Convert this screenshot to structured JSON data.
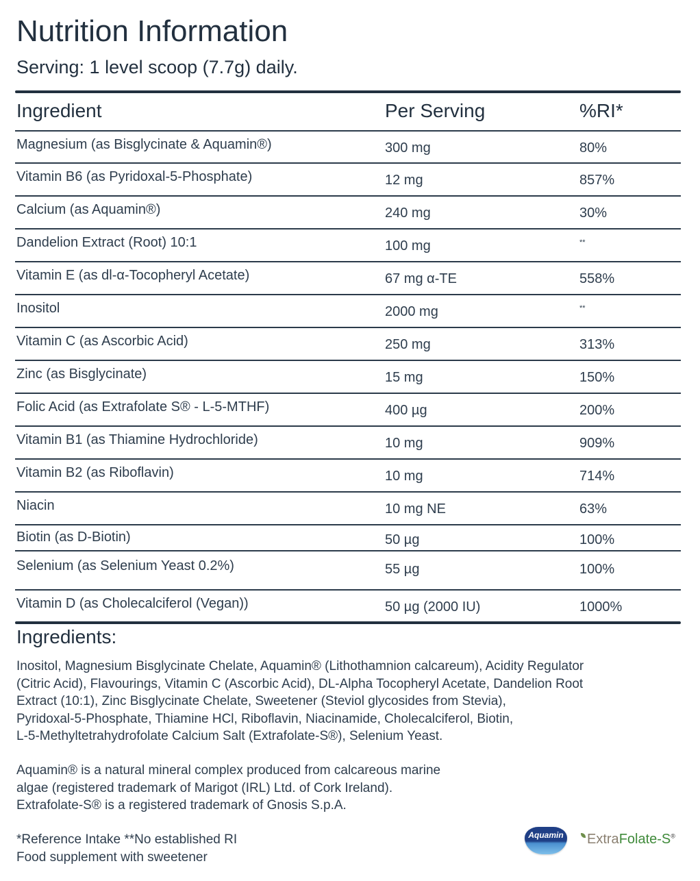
{
  "header": {
    "title": "Nutrition Information",
    "serving": "Serving: 1 level scoop (7.7g) daily."
  },
  "table": {
    "columns": [
      "Ingredient",
      "Per Serving",
      "%RI*"
    ],
    "rows": [
      {
        "ingredient": "Magnesium (as Bisglycinate & Aquamin®)",
        "per_serving": "300 mg",
        "ri": "80%"
      },
      {
        "ingredient": "Vitamin B6 (as Pyridoxal-5-Phosphate)",
        "per_serving": "12 mg",
        "ri": "857%"
      },
      {
        "ingredient": "Calcium (as Aquamin®)",
        "per_serving": "240 mg",
        "ri": "30%"
      },
      {
        "ingredient": "Dandelion Extract (Root) 10:1",
        "per_serving": "100 mg",
        "ri": "**"
      },
      {
        "ingredient": "Vitamin E (as dl-α-Tocopheryl Acetate)",
        "per_serving": "67 mg α-TE",
        "ri": "558%"
      },
      {
        "ingredient": "Inositol",
        "per_serving": "2000 mg",
        "ri": "**"
      },
      {
        "ingredient": "Vitamin C (as Ascorbic Acid)",
        "per_serving": "250 mg",
        "ri": "313%"
      },
      {
        "ingredient": "Zinc (as Bisglycinate)",
        "per_serving": "15 mg",
        "ri": "150%"
      },
      {
        "ingredient": "Folic Acid (as Extrafolate S® - L-5-MTHF)",
        "per_serving": "400 µg",
        "ri": "200%"
      },
      {
        "ingredient": "Vitamin B1 (as Thiamine Hydrochloride)",
        "per_serving": "10 mg",
        "ri": "909%"
      },
      {
        "ingredient": "Vitamin B2 (as Riboflavin)",
        "per_serving": "10 mg",
        "ri": "714%"
      },
      {
        "ingredient": "Niacin",
        "per_serving": "10 mg NE",
        "ri": "63%"
      },
      {
        "ingredient": "Biotin (as D-Biotin)",
        "per_serving": "50 µg",
        "ri": "100%"
      },
      {
        "ingredient": "Selenium (as Selenium Yeast 0.2%)",
        "per_serving": "55 µg",
        "ri": "100%"
      },
      {
        "ingredient": "Vitamin D (as Cholecalciferol (Vegan))",
        "per_serving": "50 µg (2000 IU)",
        "ri": "1000%"
      }
    ]
  },
  "ingredients": {
    "title": "Ingredients:",
    "lines": [
      "Inositol, Magnesium Bisglycinate Chelate, Aquamin® (Lithothamnion calcareum), Acidity Regulator",
      "(Citric Acid), Flavourings, Vitamin C (Ascorbic Acid), DL-Alpha Tocopheryl Acetate, Dandelion Root",
      "Extract (10:1), Zinc Bisglycinate Chelate, Sweetener (Steviol glycosides from Stevia),",
      "Pyridoxal-5-Phosphate, Thiamine HCl, Riboflavin, Niacinamide, Cholecalciferol, Biotin,",
      "L-5-Methyltetrahydrofolate Calcium Salt (Extrafolate-S®), Selenium Yeast."
    ]
  },
  "trademark_notes": [
    "Aquamin® is a natural mineral complex produced from calcareous marine",
    "algae (registered trademark of Marigot (IRL) Ltd. of Cork Ireland).",
    "Extrafolate-S® is a registered trademark of Gnosis S.p.A."
  ],
  "footer": {
    "reference": "*Reference Intake **No established RI",
    "supplement": "Food supplement with sweetener"
  },
  "logos": {
    "aquamin": "Aquamin",
    "extrafolate_extra": "Extra",
    "extrafolate_folate": "Folate-S",
    "extrafolate_reg": "®"
  },
  "colors": {
    "text_dark": "#22303f",
    "rule": "#2b3a4a",
    "aquamin_blue": "#1f3f86",
    "extrafolate_green": "#3f8a3a"
  }
}
